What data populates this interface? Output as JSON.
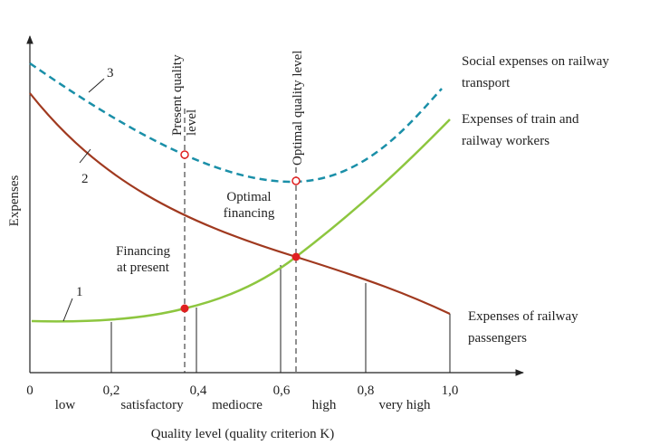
{
  "axis": {
    "y_label": "Expenses",
    "x_label": "Quality level (quality criterion K)",
    "x_ticks": [
      "0",
      "0,2",
      "0,4",
      "0,6",
      "0,8",
      "1,0"
    ],
    "quality_levels": [
      "low",
      "satisfactory",
      "mediocre",
      "high",
      "very high"
    ]
  },
  "curves": [
    {
      "number": "1",
      "label": [
        "Expenses of train and",
        "railway workers"
      ]
    },
    {
      "number": "2",
      "label": [
        "Expenses of railway",
        "passengers"
      ]
    },
    {
      "number": "3",
      "label": [
        "Social expenses on railway",
        "transport"
      ]
    }
  ],
  "markers": {
    "present_level": [
      "Present quality",
      "level"
    ],
    "optimal_level": "Optimal quality level",
    "present_financing": [
      "Financing",
      "at present"
    ],
    "optimal_financing": [
      "Optimal",
      "financing"
    ]
  }
}
